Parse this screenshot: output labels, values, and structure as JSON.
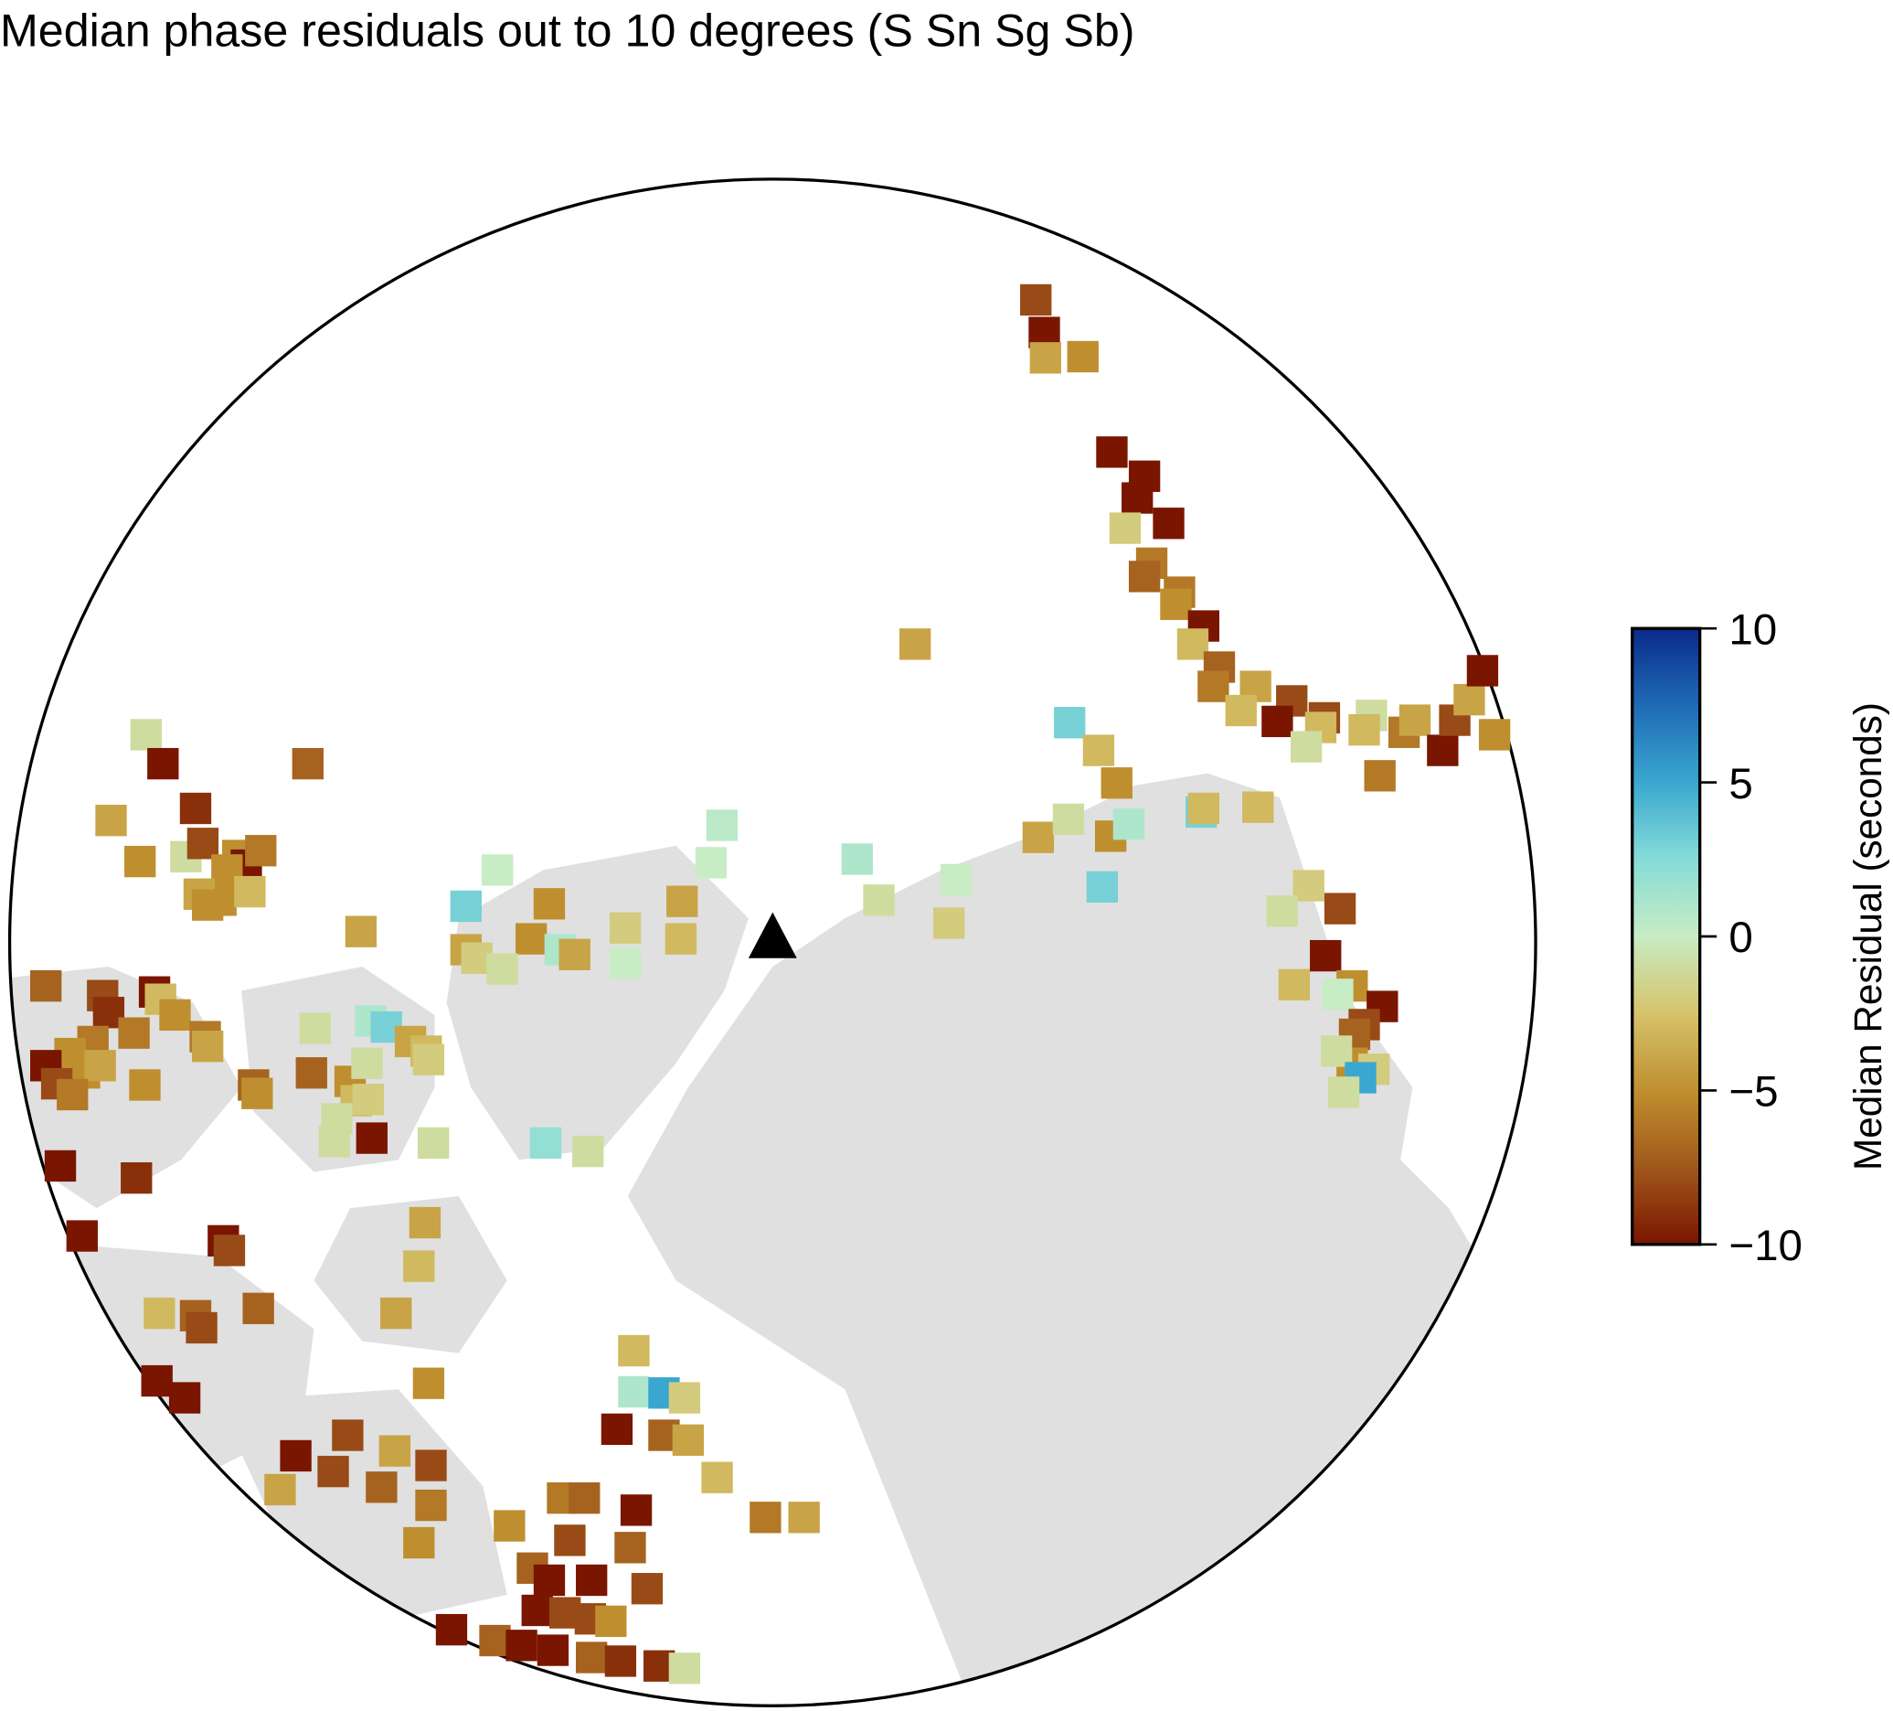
{
  "chart_data": {
    "type": "map",
    "title": "Median phase residuals out to 10 degrees (S Sn Sg Sb)",
    "colorbar": {
      "label": "Median Residual (seconds)",
      "lim": [
        -10,
        10
      ],
      "ticks": [
        {
          "value": -10,
          "label": "−10"
        },
        {
          "value": -5,
          "label": "−5"
        },
        0,
        5,
        10
      ],
      "colors": [
        "#7a1500",
        "#a0581b",
        "#bf8f2f",
        "#d6c36b",
        "#c8ecc4",
        "#86dcd8",
        "#3aa7d0",
        "#1f6bb5",
        "#0a2a8a"
      ]
    },
    "values": [
      -8,
      -10,
      -4,
      -5,
      -10,
      -10,
      -10,
      -2,
      -10,
      -6,
      -7,
      -6,
      -5,
      -10,
      -3,
      -7,
      -6,
      -4,
      -3,
      -8,
      -10,
      -8,
      -3,
      -1,
      -3,
      -1,
      -6,
      -6,
      -4,
      -10,
      -8,
      -4,
      -10,
      -5,
      -4,
      3,
      -3,
      -5,
      -4,
      -1,
      -5,
      1,
      3,
      -3,
      -3,
      3,
      0.5,
      0,
      1,
      0,
      3,
      -5,
      -2,
      -4,
      -3,
      -1,
      0,
      -2,
      -4,
      -4,
      -5,
      1,
      -4,
      -2,
      -1,
      0,
      -2,
      -1,
      -8,
      -10,
      -3,
      -5,
      0,
      -10,
      -8,
      -7,
      -5,
      -1,
      -2,
      5,
      -1,
      -1,
      -10,
      -7,
      -9,
      -4,
      -5,
      -1,
      -8,
      -5,
      -10,
      -6,
      -5,
      -5,
      -3,
      -4,
      -5,
      -7,
      -8,
      -9,
      -6,
      -10,
      -3,
      -5,
      -6,
      -4,
      -6,
      -5,
      -5,
      -4,
      -10,
      -8,
      -6,
      -5,
      -7,
      -5,
      -1,
      -7,
      -5,
      -3,
      -1,
      -1,
      -10,
      1,
      3,
      -1,
      -2,
      -4,
      -3,
      -2,
      -1,
      2,
      -1,
      -10,
      -9,
      -10,
      -10,
      -8,
      -4,
      -3,
      -4,
      -3,
      -7,
      -8,
      -7,
      -10,
      -10,
      -5,
      -3,
      1,
      5,
      -2,
      -10,
      -7,
      -4,
      -10,
      -8,
      -4,
      -4,
      -8,
      -7,
      -8,
      -6,
      -5,
      -3,
      -6,
      -7,
      -10,
      -6,
      -4,
      -5,
      -8,
      -7,
      -7,
      -10,
      -10,
      -8,
      -10,
      -8,
      -8,
      -5,
      -10,
      -7,
      -10,
      -10,
      -7,
      -9,
      -9,
      -1
    ]
  }
}
